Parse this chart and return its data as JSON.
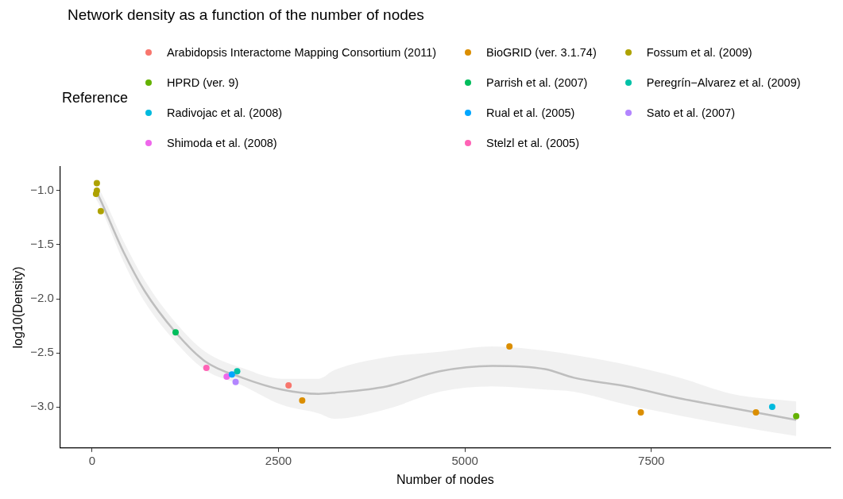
{
  "chart_data": {
    "type": "scatter",
    "title": "Network density as a function of the number of nodes",
    "xlabel": "Number of nodes",
    "ylabel": "log10(Density)",
    "legend_title": "Reference",
    "legend": "top",
    "grid": false,
    "marker": "circle",
    "xlim": [
      -427,
      9900
    ],
    "xticks": [
      0,
      2500,
      5000,
      7500
    ],
    "ylim": [
      -3.38,
      -0.78
    ],
    "yticks": [
      {
        "value": -3,
        "label": "−3.0"
      },
      {
        "value": -2.5,
        "label": "−2.5"
      },
      {
        "value": -2,
        "label": "−2.0"
      },
      {
        "value": -1.5,
        "label": "−1.5"
      },
      {
        "value": -1,
        "label": "−1.0"
      }
    ],
    "series": [
      {
        "name": "Arabidopsis Interactome Mapping Consortium (2011)",
        "color": "#f8766d",
        "x": [
          2635
        ],
        "values": [
          -2.8
        ]
      },
      {
        "name": "BioGRID (ver. 3.1.74)",
        "color": "#db8e00",
        "x": [
          2818,
          5597,
          7359,
          8903
        ],
        "values": [
          -2.94,
          -2.44,
          -3.05,
          -3.05
        ]
      },
      {
        "name": "Fossum et al. (2009)",
        "color": "#aea200",
        "x": [
          64,
          64,
          53,
          117
        ],
        "values": [
          -0.93,
          -1.0,
          -1.03,
          -1.19
        ]
      },
      {
        "name": "HPRD (ver. 9)",
        "color": "#64b200",
        "x": [
          9443
        ],
        "values": [
          -3.085
        ]
      },
      {
        "name": "Parrish et al. (2007)",
        "color": "#00bd5c",
        "x": [
          1120
        ],
        "values": [
          -2.31
        ]
      },
      {
        "name": "Peregrín−Alvarez et al. (2009)",
        "color": "#00c1a7",
        "x": [
          1946
        ],
        "values": [
          -2.67
        ]
      },
      {
        "name": "Radivojac et al. (2008)",
        "color": "#00bade",
        "x": [
          9121
        ],
        "values": [
          -3.0
        ]
      },
      {
        "name": "Rual et al. (2005)",
        "color": "#00a6ff",
        "x": [
          1875
        ],
        "values": [
          -2.7
        ]
      },
      {
        "name": "Sato et al. (2007)",
        "color": "#b385ff",
        "x": [
          1925
        ],
        "values": [
          -2.77
        ]
      },
      {
        "name": "Shimoda et al. (2008)",
        "color": "#ef67eb",
        "x": [
          1805
        ],
        "values": [
          -2.72
        ]
      },
      {
        "name": "Stelzl et al. (2005)",
        "color": "#ff63b6",
        "x": [
          1533
        ],
        "values": [
          -2.64
        ]
      },
      {
        "type": "line",
        "color": "#bebebe",
        "marker": "none",
        "x": [
          53,
          89,
          424,
          707,
          1120,
          1519,
          2013,
          2542,
          3037,
          3249,
          3955,
          4661,
          5367,
          6074,
          6462,
          7168,
          7875,
          8581,
          9443
        ],
        "values": [
          -1.0,
          -1.05,
          -1.57,
          -1.93,
          -2.31,
          -2.58,
          -2.73,
          -2.84,
          -2.88,
          -2.87,
          -2.81,
          -2.67,
          -2.62,
          -2.65,
          -2.73,
          -2.81,
          -2.92,
          -3.01,
          -3.12
        ],
        "lower": [
          -1.08,
          -1.12,
          -1.66,
          -2.03,
          -2.4,
          -2.66,
          -2.8,
          -2.98,
          -3.06,
          -3.11,
          -3.02,
          -2.86,
          -2.81,
          -2.84,
          -2.86,
          -2.98,
          -3.08,
          -3.17,
          -3.27
        ],
        "upper": [
          -0.95,
          -0.98,
          -1.47,
          -1.83,
          -2.22,
          -2.49,
          -2.64,
          -2.74,
          -2.74,
          -2.66,
          -2.54,
          -2.49,
          -2.44,
          -2.48,
          -2.52,
          -2.61,
          -2.73,
          -2.88,
          -2.95
        ]
      }
    ]
  }
}
